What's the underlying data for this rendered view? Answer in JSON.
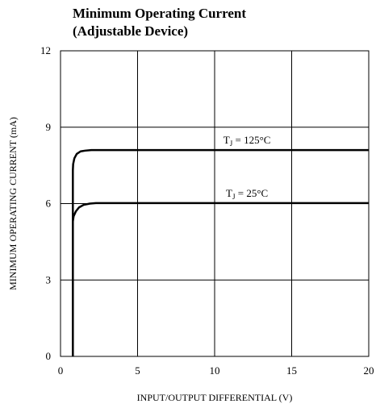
{
  "chart_data": {
    "type": "line",
    "title_line1": "Minimum Operating Current",
    "title_line2": "(Adjustable Device)",
    "xlabel": "INPUT/OUTPUT DIFFERENTIAL (V)",
    "ylabel": "MINIMUM OPERATING CURRENT (mA)",
    "xlim": [
      0,
      20
    ],
    "ylim": [
      0,
      12
    ],
    "x_ticks": [
      0,
      5,
      10,
      15,
      20
    ],
    "y_ticks": [
      0,
      3,
      6,
      9,
      12
    ],
    "grid": true,
    "series": [
      {
        "name": "TJ = 125°C",
        "label_main": "T",
        "label_sub": "J",
        "label_rest": " = 125°C",
        "x": [
          0.8,
          0.8,
          0.82,
          0.9,
          1.05,
          1.3,
          1.6,
          2.0,
          20
        ],
        "y": [
          0,
          7.3,
          7.55,
          7.78,
          7.95,
          8.05,
          8.08,
          8.1,
          8.1
        ]
      },
      {
        "name": "TJ = 25°C",
        "label_main": "T",
        "label_sub": "J",
        "label_rest": " = 25°C",
        "x": [
          0.8,
          0.8,
          0.85,
          1.0,
          1.2,
          1.5,
          1.9,
          2.3,
          20
        ],
        "y": [
          0,
          5.3,
          5.5,
          5.7,
          5.85,
          5.95,
          6.0,
          6.02,
          6.02
        ]
      }
    ]
  }
}
